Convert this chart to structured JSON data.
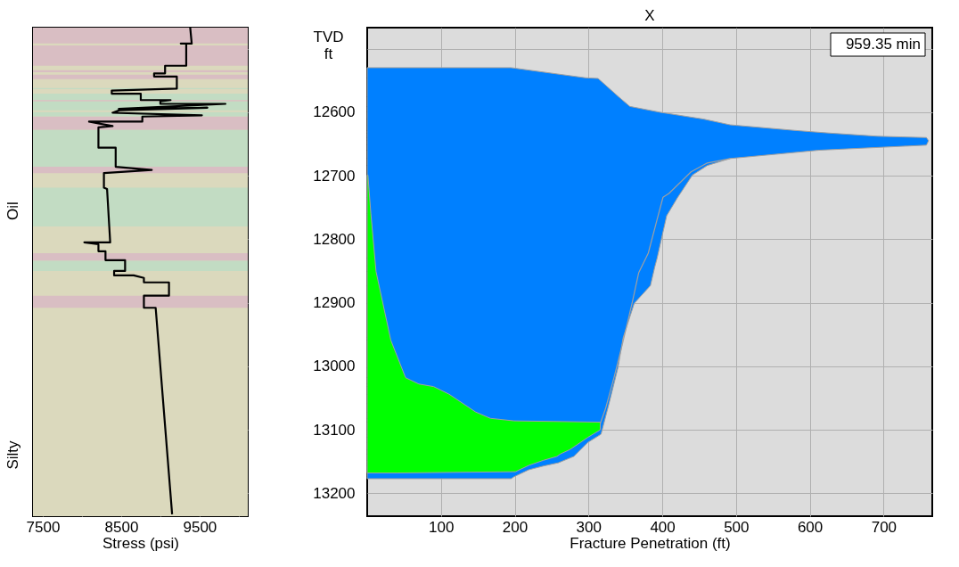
{
  "chart_data": [
    {
      "type": "line",
      "orientation": "horizontal",
      "xlabel": "Stress (psi)",
      "xlim": [
        7375,
        10115
      ],
      "xticks": [
        7500,
        {
          "value": 8000,
          "label": null
        },
        8500,
        {
          "value": 9000,
          "label": null
        },
        9500,
        {
          "value": 10000,
          "label": null
        }
      ],
      "ylim": [
        13236,
        12467
      ],
      "yticks": [
        {
          "value": 12500,
          "label": null
        },
        {
          "value": 12600,
          "label": null
        },
        {
          "value": 12700,
          "label": null
        },
        {
          "value": 12800,
          "label": null
        },
        {
          "value": 12900,
          "label": null
        },
        {
          "value": 13000,
          "label": null
        },
        {
          "value": 13100,
          "label": null
        },
        {
          "value": 13200,
          "label": null
        }
      ],
      "tick_labels": "x",
      "grid": true,
      "bands": [
        {
          "axis": "y",
          "from": 12467,
          "to": 13236,
          "color": "#dbd9bd"
        },
        {
          "axis": "y",
          "from": 12467,
          "to": 12492,
          "color": "#d9bec3"
        },
        {
          "axis": "y",
          "from": 12495,
          "to": 12527,
          "color": "#d9bec3"
        },
        {
          "axis": "y",
          "from": 12534,
          "to": 12537,
          "color": "#d9bec3"
        },
        {
          "axis": "y",
          "from": 12541,
          "to": 12548,
          "color": "#d9bec3"
        },
        {
          "axis": "y",
          "from": 12562,
          "to": 12564,
          "color": "#c2dcc3"
        },
        {
          "axis": "y",
          "from": 12571,
          "to": 12581,
          "color": "#c2dcc3"
        },
        {
          "axis": "y",
          "from": 12581,
          "to": 12583,
          "color": "#d9bec3"
        },
        {
          "axis": "y",
          "from": 12583,
          "to": 12597,
          "color": "#c2dcc3"
        },
        {
          "axis": "y",
          "from": 12600,
          "to": 12607,
          "color": "#c2dcc3"
        },
        {
          "axis": "y",
          "from": 12607,
          "to": 12628,
          "color": "#d9bec3"
        },
        {
          "axis": "y",
          "from": 12628,
          "to": 12686,
          "color": "#c2dcc3"
        },
        {
          "axis": "y",
          "from": 12686,
          "to": 12696,
          "color": "#d9bec3"
        },
        {
          "axis": "y",
          "from": 12719,
          "to": 12780,
          "color": "#c2dcc3"
        },
        {
          "axis": "y",
          "from": 12822,
          "to": 12834,
          "color": "#d9bec3"
        },
        {
          "axis": "y",
          "from": 12834,
          "to": 12850,
          "color": "#c2dcc3"
        },
        {
          "axis": "y",
          "from": 12889,
          "to": 12908,
          "color": "#d9bec3"
        }
      ],
      "series": [
        {
          "color": "#000000",
          "x": [
            12466,
            12492,
            12492,
            12492,
            12527,
            12527,
            12539,
            12539,
            12544,
            12544,
            12563,
            12566,
            12571,
            12571,
            12581,
            12581,
            12583,
            12587,
            12587,
            12595,
            12593,
            12597,
            12601,
            12605,
            12607,
            12615,
            12615,
            12622,
            12624,
            12656,
            12656,
            12686,
            12691,
            12696,
            12719,
            12721,
            12805,
            12805,
            12808,
            12819,
            12819,
            12833,
            12833,
            12850,
            12850,
            12857,
            12857,
            12861,
            12868,
            12868,
            12889,
            12889,
            12908,
            12908,
            13233
          ],
          "values": [
            9380,
            9400,
            9260,
            9330,
            9330,
            9060,
            9060,
            8920,
            8920,
            9210,
            9210,
            8380,
            8380,
            8750,
            8750,
            9130,
            9000,
            9000,
            9830,
            8470,
            9600,
            8480,
            8390,
            9530,
            8770,
            8770,
            8090,
            8390,
            8210,
            8210,
            8430,
            8430,
            8890,
            8280,
            8280,
            8320,
            8360,
            8030,
            8210,
            8210,
            8300,
            8300,
            8550,
            8550,
            8410,
            8410,
            8660,
            8790,
            8790,
            9110,
            9110,
            8790,
            8790,
            8940,
            9150
          ]
        }
      ],
      "annotations": [
        "Oil",
        "Silty"
      ]
    },
    {
      "type": "area",
      "orientation": "horizontal",
      "title": "X",
      "xlabel": "Fracture Penetration (ft)",
      "ylabel": "TVD ft",
      "xlim": [
        0,
        766
      ],
      "xticks": [
        100,
        200,
        300,
        400,
        500,
        600,
        700
      ],
      "ylim": [
        13236,
        12467
      ],
      "yticks": [
        {
          "value": 12500,
          "label": null
        },
        12600,
        12700,
        12800,
        12900,
        13000,
        13100,
        13200
      ],
      "grid": true,
      "series": [
        {
          "color": "#0080ff",
          "x": [
            12530,
            12546,
            12547,
            12576,
            12591,
            12600,
            12611,
            12620,
            12629,
            12633,
            12638,
            12640,
            12645,
            12652,
            12660,
            12673,
            12684,
            12699,
            12734,
            12763,
            12830,
            12843,
            12873,
            12901,
            12955,
            13002,
            13058,
            13107,
            13120,
            13142,
            13152,
            13157,
            13163,
            13174,
            13177
          ],
          "values": [
            195,
            296,
            313,
            341,
            356,
            396,
            456,
            492,
            582,
            627,
            692,
            758,
            761,
            758,
            612,
            492,
            461,
            441,
            421,
            406,
            393,
            390,
            384,
            362,
            347,
            340,
            328,
            317,
            299,
            280,
            259,
            239,
            219,
            199,
            195
          ]
        },
        {
          "color": "#00ff00",
          "x": [
            12699,
            12760,
            12851,
            12959,
            13018,
            13028,
            13032,
            13044,
            13072,
            13082,
            13086,
            13088,
            13100,
            13112,
            13131,
            13138,
            13142,
            13148,
            13156,
            13166,
            13168
          ],
          "values": [
            1,
            5,
            12,
            32,
            52,
            70,
            90,
            111,
            147,
            167,
            199,
            316,
            316,
            299,
            275,
            262,
            257,
            239,
            219,
            201,
            40
          ]
        },
        {
          "type": "line",
          "color": "#a0a0a0",
          "x": [
            12673,
            12680,
            12694,
            12728,
            12734,
            12769,
            12822,
            12853,
            12896,
            12965,
            13016,
            13067,
            13090
          ],
          "values": [
            492,
            461,
            439,
            409,
            401,
            393,
            381,
            368,
            360,
            346,
            335,
            323,
            316
          ]
        }
      ],
      "annotations": [
        "959.35 min"
      ]
    }
  ]
}
